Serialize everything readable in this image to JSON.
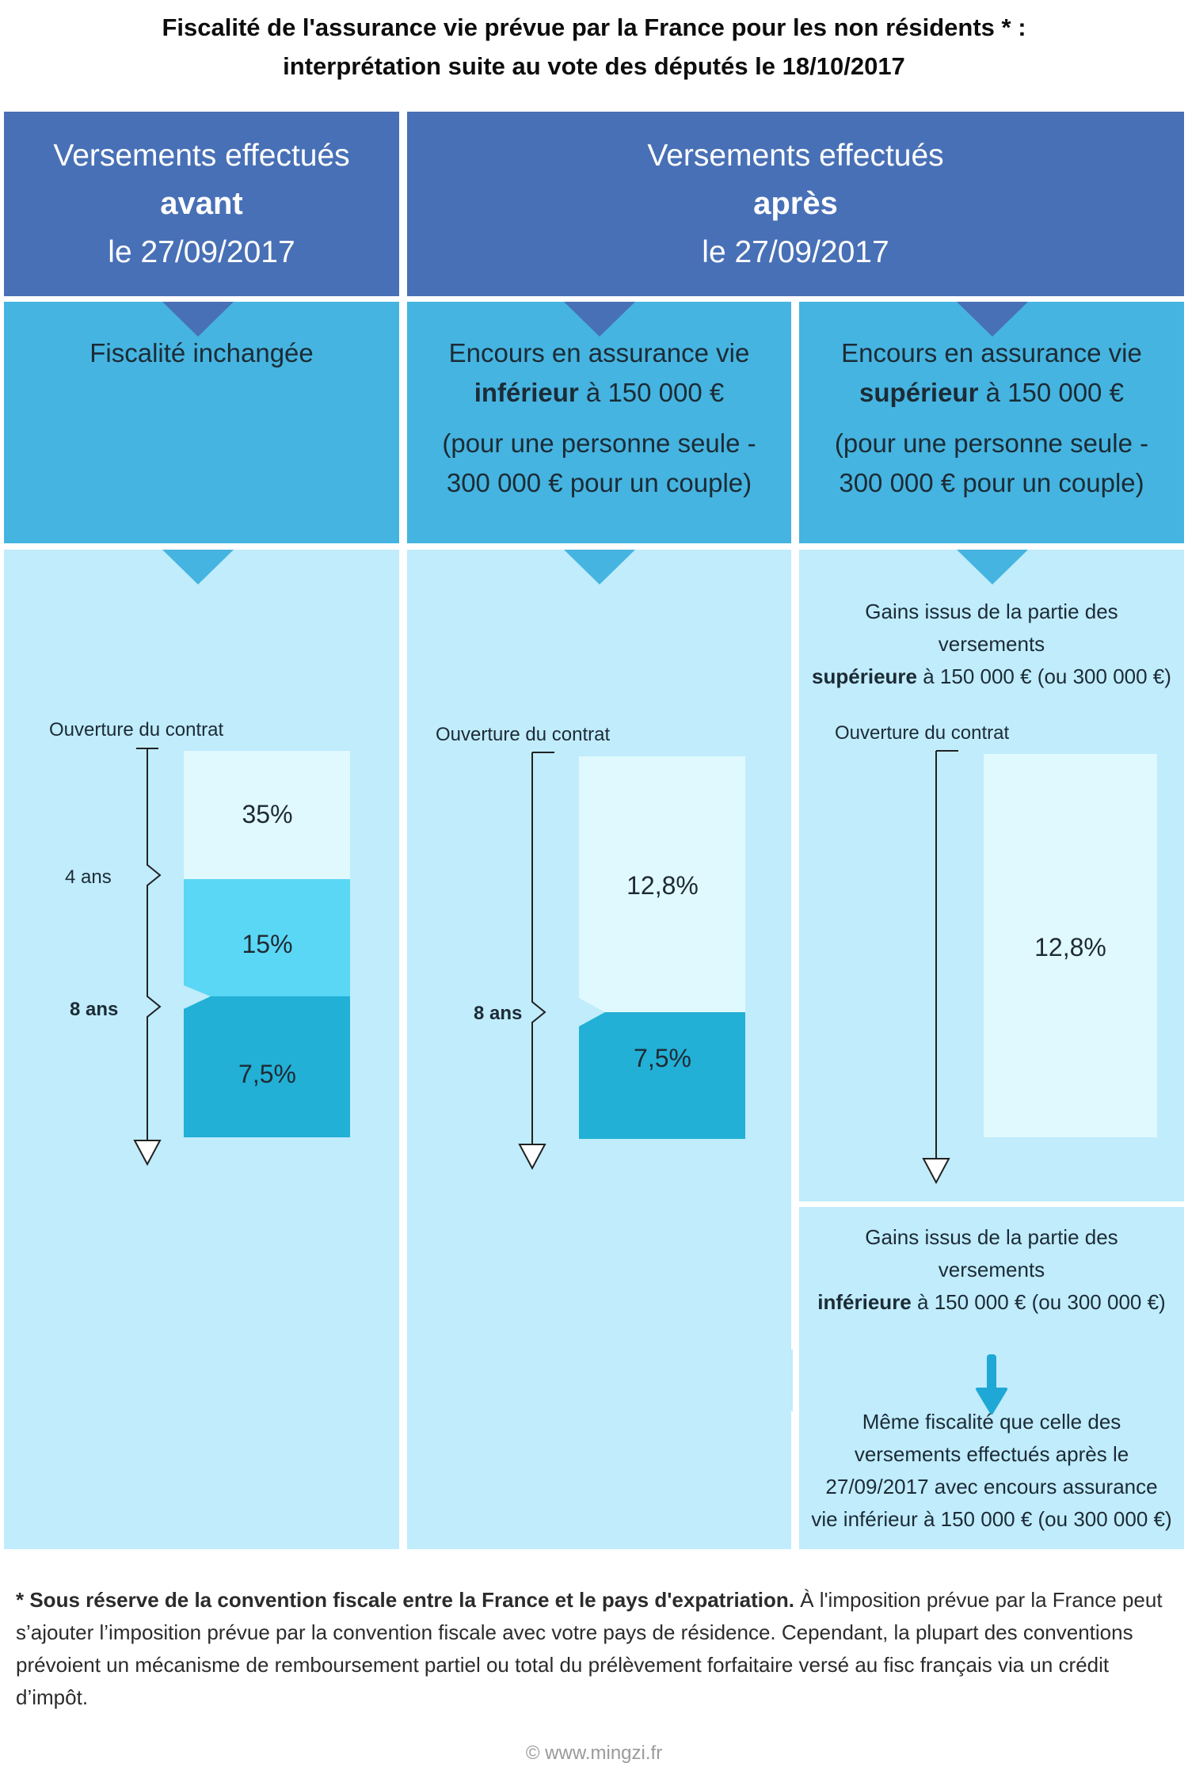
{
  "title": {
    "line1": "Fiscalité de l'assurance vie prévue par la France pour les non résidents * :",
    "line2": "interprétation suite au vote des députés le 18/10/2017"
  },
  "header_before": {
    "line1": "Versements effectués",
    "bold": "avant",
    "line3": "le 27/09/2017"
  },
  "header_after": {
    "line1": "Versements effectués",
    "bold": "après",
    "line3": "le 27/09/2017"
  },
  "col1": {
    "sub_title": "Fiscalité inchangée",
    "axis_top": "Ouverture du contrat",
    "mark1": "4 ans",
    "mark2": "8 ans",
    "rates": [
      "35%",
      "15%",
      "7,5%"
    ]
  },
  "col2": {
    "sub_line1": "Encours en assurance vie",
    "sub_bold": "inférieur",
    "sub_line2_rest": " à 150 000 €",
    "sub_line3": "(pour une personne seule -",
    "sub_line4": "300 000 € pour un couple)",
    "axis_top": "Ouverture du contrat",
    "mark": "8 ans",
    "rates": [
      "12,8%",
      "7,5%"
    ]
  },
  "col3": {
    "sub_line1": "Encours en assurance vie",
    "sub_bold": "supérieur",
    "sub_line2_rest": " à 150 000 €",
    "sub_line3": "(pour une personne seule -",
    "sub_line4": "300 000 € pour un couple)",
    "gains_upper_line1": "Gains issus de la partie des",
    "gains_upper_line2": "versements",
    "gains_upper_bold": "supérieure",
    "gains_upper_rest": " à 150 000 € (ou 300 000 €)",
    "axis_top": "Ouverture du contrat",
    "rate": "12,8%",
    "gains_lower_line1": "Gains issus de la partie des",
    "gains_lower_line2": "versements",
    "gains_lower_bold": "inférieure",
    "gains_lower_rest": " à 150 000 € (ou 300 000 €)",
    "same_line1": "Même fiscalité que celle des",
    "same_line2": "versements effectués après le",
    "same_line3": "27/09/2017 avec encours assurance",
    "same_line4": "vie inférieur à 150 000 € (ou 300 000 €)"
  },
  "footnote": {
    "bold": "* Sous réserve de la convention fiscale entre la France et le pays d'expatriation.",
    "text": " À l'imposition prévue par la France peut s’ajouter l’imposition prévue par la convention fiscale avec votre pays de résidence. Cependant, la plupart des conventions prévoient un mécanisme de remboursement partiel ou total du prélèvement forfaitaire versé au fisc français via un crédit d’impôt."
  },
  "copyright": "© www.mingzi.fr",
  "colors": {
    "header_blue": "#4870b6",
    "sub_blue": "#45b4e0",
    "panel_light": "#c0ecfc",
    "rate_35": "#e0f9fe",
    "rate_15": "#5ad7f5",
    "rate_75": "#22b0d6",
    "rate_128": "#e0f9fe",
    "arrow_blue": "#1fa8d6"
  }
}
